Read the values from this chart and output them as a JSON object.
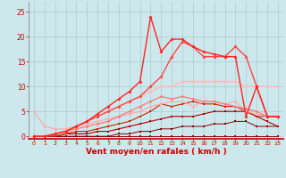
{
  "background_color": "#cce8ec",
  "grid_color": "#aacccc",
  "xlabel": "Vent moyen/en rafales ( km/h )",
  "xlabel_color": "#cc0000",
  "xlabel_fontsize": 6.5,
  "ytick_color": "#cc0000",
  "xtick_color": "#cc0000",
  "ylim": [
    -0.5,
    27
  ],
  "xlim": [
    -0.5,
    23.5
  ],
  "yticks": [
    0,
    5,
    10,
    15,
    20,
    25
  ],
  "lines": [
    {
      "x": [
        0,
        1,
        2,
        3,
        4,
        5,
        6,
        7,
        8,
        9,
        10,
        11,
        12,
        13,
        14,
        15,
        16,
        17,
        18,
        19,
        20,
        21,
        22,
        23
      ],
      "y": [
        0,
        0,
        0,
        0,
        0,
        0,
        0,
        0,
        0,
        0,
        0,
        0,
        0,
        0,
        0,
        0,
        0,
        0,
        0,
        0,
        0,
        0,
        0,
        0
      ],
      "color": "#990000",
      "lw": 0.7,
      "marker": "s",
      "ms": 1.5
    },
    {
      "x": [
        0,
        1,
        2,
        3,
        4,
        5,
        6,
        7,
        8,
        9,
        10,
        11,
        12,
        13,
        14,
        15,
        16,
        17,
        18,
        19,
        20,
        21,
        22,
        23
      ],
      "y": [
        0,
        0,
        0,
        0,
        0,
        0,
        0,
        0,
        0.5,
        0.5,
        1,
        1,
        1.5,
        1.5,
        2,
        2,
        2,
        2.5,
        2.5,
        3,
        3,
        2,
        2,
        2
      ],
      "color": "#880000",
      "lw": 0.7,
      "marker": "s",
      "ms": 1.5
    },
    {
      "x": [
        0,
        1,
        2,
        3,
        4,
        5,
        6,
        7,
        8,
        9,
        10,
        11,
        12,
        13,
        14,
        15,
        16,
        17,
        18,
        19,
        20,
        21,
        22,
        23
      ],
      "y": [
        0,
        0,
        0,
        0.5,
        0.5,
        0.5,
        1,
        1,
        1.5,
        2,
        2.5,
        3,
        3.5,
        4,
        4,
        4,
        4.5,
        5,
        5,
        5,
        5,
        4,
        3,
        2
      ],
      "color": "#aa0000",
      "lw": 0.8,
      "marker": "s",
      "ms": 1.8
    },
    {
      "x": [
        0,
        1,
        2,
        3,
        4,
        5,
        6,
        7,
        8,
        9,
        10,
        11,
        12,
        13,
        14,
        15,
        16,
        17,
        18,
        19,
        20,
        21,
        22,
        23
      ],
      "y": [
        0,
        0,
        0,
        0.5,
        1,
        1,
        1.5,
        2,
        2.5,
        3,
        4,
        5,
        6.5,
        6,
        6.5,
        7,
        6.5,
        6.5,
        6,
        6,
        5,
        4,
        4,
        4
      ],
      "color": "#cc2200",
      "lw": 0.8,
      "marker": "s",
      "ms": 1.8
    },
    {
      "x": [
        0,
        1,
        2,
        3,
        4,
        5,
        6,
        7,
        8,
        9,
        10,
        11,
        12,
        13,
        14,
        15,
        16,
        17,
        18,
        19,
        20,
        21,
        22,
        23
      ],
      "y": [
        5,
        2,
        1.5,
        1.5,
        2,
        2.5,
        3,
        3.5,
        4,
        4.5,
        5,
        6,
        6.5,
        7,
        7,
        6,
        7,
        7,
        6.5,
        7,
        5,
        4.5,
        4,
        4
      ],
      "color": "#ffaaaa",
      "lw": 0.9,
      "marker": "D",
      "ms": 1.8
    },
    {
      "x": [
        0,
        1,
        2,
        3,
        4,
        5,
        6,
        7,
        8,
        9,
        10,
        11,
        12,
        13,
        14,
        15,
        16,
        17,
        18,
        19,
        20,
        21,
        22,
        23
      ],
      "y": [
        0,
        0,
        0.5,
        1,
        1.5,
        2,
        2.5,
        3,
        4,
        5,
        6,
        7,
        8,
        7.5,
        8,
        7.5,
        7,
        7,
        6.5,
        6,
        5.5,
        5,
        4,
        4
      ],
      "color": "#ff7777",
      "lw": 0.9,
      "marker": "D",
      "ms": 1.8
    },
    {
      "x": [
        0,
        1,
        2,
        3,
        4,
        5,
        6,
        7,
        8,
        9,
        10,
        11,
        12,
        13,
        14,
        15,
        16,
        17,
        18,
        19,
        20,
        21,
        22,
        23
      ],
      "y": [
        0,
        0,
        0.5,
        1,
        2,
        3,
        4,
        5,
        6,
        7,
        8,
        9,
        10,
        10,
        11,
        11,
        11,
        11,
        11,
        11,
        10,
        10,
        10,
        10
      ],
      "color": "#ffbbbb",
      "lw": 1.2,
      "marker": "D",
      "ms": 2.0
    },
    {
      "x": [
        0,
        1,
        2,
        3,
        4,
        5,
        6,
        7,
        8,
        9,
        10,
        11,
        12,
        13,
        14,
        15,
        16,
        17,
        18,
        19,
        20,
        21,
        22,
        23
      ],
      "y": [
        0,
        0,
        0.5,
        1,
        2,
        3,
        4,
        5,
        6,
        7,
        8,
        10,
        12,
        16,
        19,
        18,
        16,
        16,
        16,
        18,
        16,
        10,
        4,
        4
      ],
      "color": "#ff4444",
      "lw": 1.0,
      "marker": "D",
      "ms": 2.0
    },
    {
      "x": [
        0,
        1,
        2,
        3,
        4,
        5,
        6,
        7,
        8,
        9,
        10,
        11,
        12,
        13,
        14,
        15,
        16,
        17,
        18,
        19,
        20,
        21,
        22,
        23
      ],
      "y": [
        0,
        0,
        0.5,
        1,
        2,
        3,
        4.5,
        6,
        7.5,
        9,
        11,
        24,
        17,
        19.5,
        19.5,
        18,
        17,
        16.5,
        16,
        16,
        4,
        10,
        4,
        4
      ],
      "color": "#ff2222",
      "lw": 1.0,
      "marker": "D",
      "ms": 2.0
    }
  ]
}
